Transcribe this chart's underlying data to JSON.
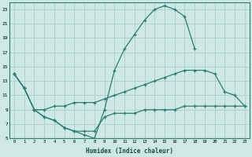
{
  "background_color": "#cee9e5",
  "grid_color": "#aacfc8",
  "line_color": "#2a7d6e",
  "xlim": [
    -0.5,
    23.5
  ],
  "ylim": [
    5,
    24
  ],
  "xlabel": "Humidex (Indice chaleur)",
  "yticks": [
    5,
    7,
    9,
    11,
    13,
    15,
    17,
    19,
    21,
    23
  ],
  "xticks": [
    0,
    1,
    2,
    3,
    4,
    5,
    6,
    7,
    8,
    9,
    10,
    11,
    12,
    13,
    14,
    15,
    16,
    17,
    18,
    19,
    20,
    21,
    22,
    23
  ],
  "line1_x": [
    0,
    1,
    2,
    3,
    4,
    5,
    6,
    7,
    8,
    9,
    10,
    11,
    12,
    13,
    14,
    15,
    16,
    17,
    18
  ],
  "line1_y": [
    14.0,
    12.0,
    9.0,
    8.0,
    7.5,
    6.5,
    6.0,
    5.5,
    5.0,
    9.0,
    14.5,
    17.5,
    19.5,
    21.5,
    23.0,
    23.5,
    23.0,
    22.0,
    17.5
  ],
  "line2_x": [
    0,
    1,
    2,
    3,
    4,
    5,
    6,
    7,
    8,
    9,
    10,
    11,
    12,
    13,
    14,
    15,
    16,
    17,
    18,
    19,
    20,
    21,
    22,
    23
  ],
  "line2_y": [
    14.0,
    12.0,
    9.0,
    9.0,
    9.5,
    9.5,
    10.0,
    10.0,
    10.0,
    10.5,
    11.0,
    11.5,
    12.0,
    12.5,
    13.0,
    13.5,
    14.0,
    14.5,
    14.5,
    14.5,
    14.0,
    11.5,
    11.0,
    9.5
  ],
  "line3_x": [
    0,
    1,
    2,
    3,
    4,
    5,
    6,
    7,
    8,
    9,
    10,
    11,
    12,
    13,
    14,
    15,
    16,
    17,
    18,
    19,
    20,
    21,
    22,
    23
  ],
  "line3_y": [
    14.0,
    12.0,
    9.0,
    8.0,
    7.5,
    6.5,
    6.0,
    6.0,
    6.0,
    8.0,
    8.5,
    8.5,
    8.5,
    9.0,
    9.0,
    9.0,
    9.0,
    9.5,
    9.5,
    9.5,
    9.5,
    9.5,
    9.5,
    9.5
  ]
}
